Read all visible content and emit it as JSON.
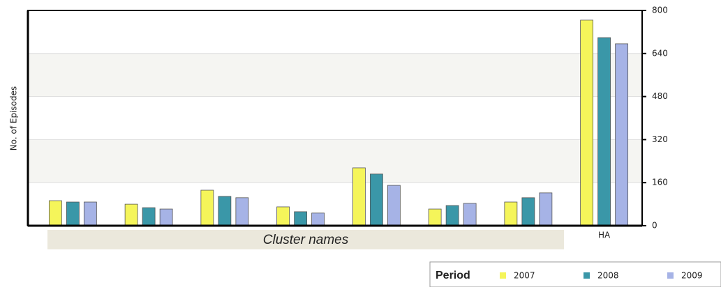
{
  "chart_data": {
    "type": "bar",
    "y_label": "No. of Episodes",
    "x_label": "Cluster names",
    "categories": [
      null,
      null,
      null,
      null,
      null,
      null,
      null,
      "HA"
    ],
    "series": [
      {
        "name": "2007",
        "color": "#f5f55a",
        "values": [
          93,
          80,
          132,
          70,
          215,
          62,
          88,
          764
        ]
      },
      {
        "name": "2008",
        "color": "#3a97a8",
        "values": [
          88,
          67,
          109,
          52,
          192,
          75,
          104,
          699
        ]
      },
      {
        "name": "2009",
        "color": "#a6b3e6",
        "values": [
          88,
          62,
          104,
          47,
          150,
          83,
          122,
          676
        ]
      }
    ],
    "legend_title": "Period",
    "ylim": [
      0,
      800
    ],
    "yticks": [
      0,
      160,
      320,
      480,
      640,
      800
    ],
    "grid": true
  }
}
